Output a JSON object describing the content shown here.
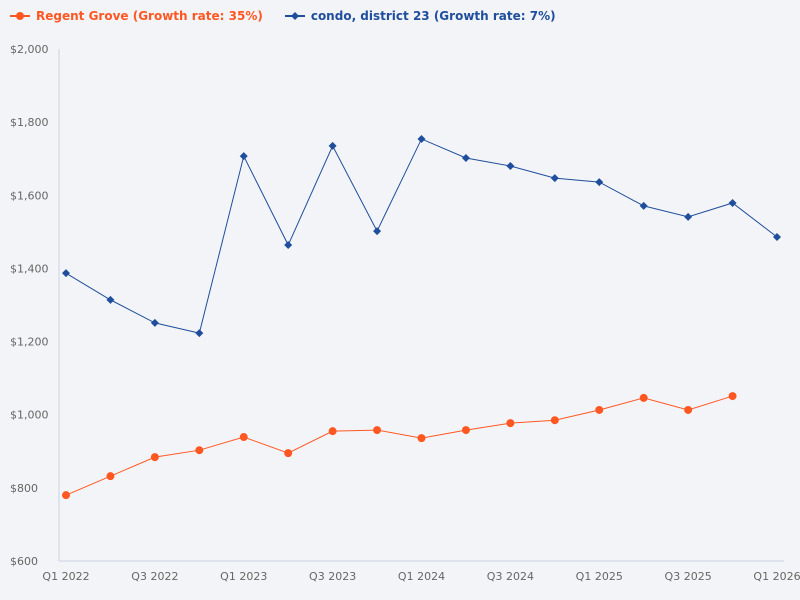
{
  "chart_data": {
    "type": "line",
    "title": "",
    "xlabel": "",
    "ylabel": "",
    "ylim": [
      600,
      2000
    ],
    "yticks": [
      "$600",
      "$800",
      "$1,000",
      "$1,200",
      "$1,400",
      "$1,600",
      "$1,800",
      "$2,000"
    ],
    "ytick_values": [
      600,
      800,
      1000,
      1200,
      1400,
      1600,
      1800,
      2000
    ],
    "x": [
      "Q1 2022",
      "Q2 2022",
      "Q3 2022",
      "Q4 2022",
      "Q1 2023",
      "Q2 2023",
      "Q3 2023",
      "Q4 2023",
      "Q1 2024",
      "Q2 2024",
      "Q3 2024",
      "Q4 2024",
      "Q1 2025",
      "Q2 2025",
      "Q3 2025",
      "Q4 2025",
      "Q1 2026"
    ],
    "xticks": [
      "Q1 2022",
      "Q3 2022",
      "Q1 2023",
      "Q3 2023",
      "Q1 2024",
      "Q3 2024",
      "Q1 2025",
      "Q3 2025",
      "Q1 2026"
    ],
    "grid": false,
    "legend_position": "top-left",
    "series": [
      {
        "name": "Regent Grove (Growth rate: 35%)",
        "color": "#ff5722",
        "marker": "circle",
        "values": [
          780,
          832,
          884,
          903,
          939,
          895,
          955,
          958,
          936,
          958,
          977,
          985,
          1013,
          1046,
          1013,
          1051,
          null
        ]
      },
      {
        "name": "condo, district 23 (Growth rate: 7%)",
        "color": "#1f4e9c",
        "marker": "diamond",
        "values": [
          1387,
          1314,
          1251,
          1223,
          1707,
          1464,
          1735,
          1502,
          1754,
          1702,
          1680,
          1647,
          1636,
          1571,
          1541,
          1579,
          1486
        ]
      }
    ]
  }
}
